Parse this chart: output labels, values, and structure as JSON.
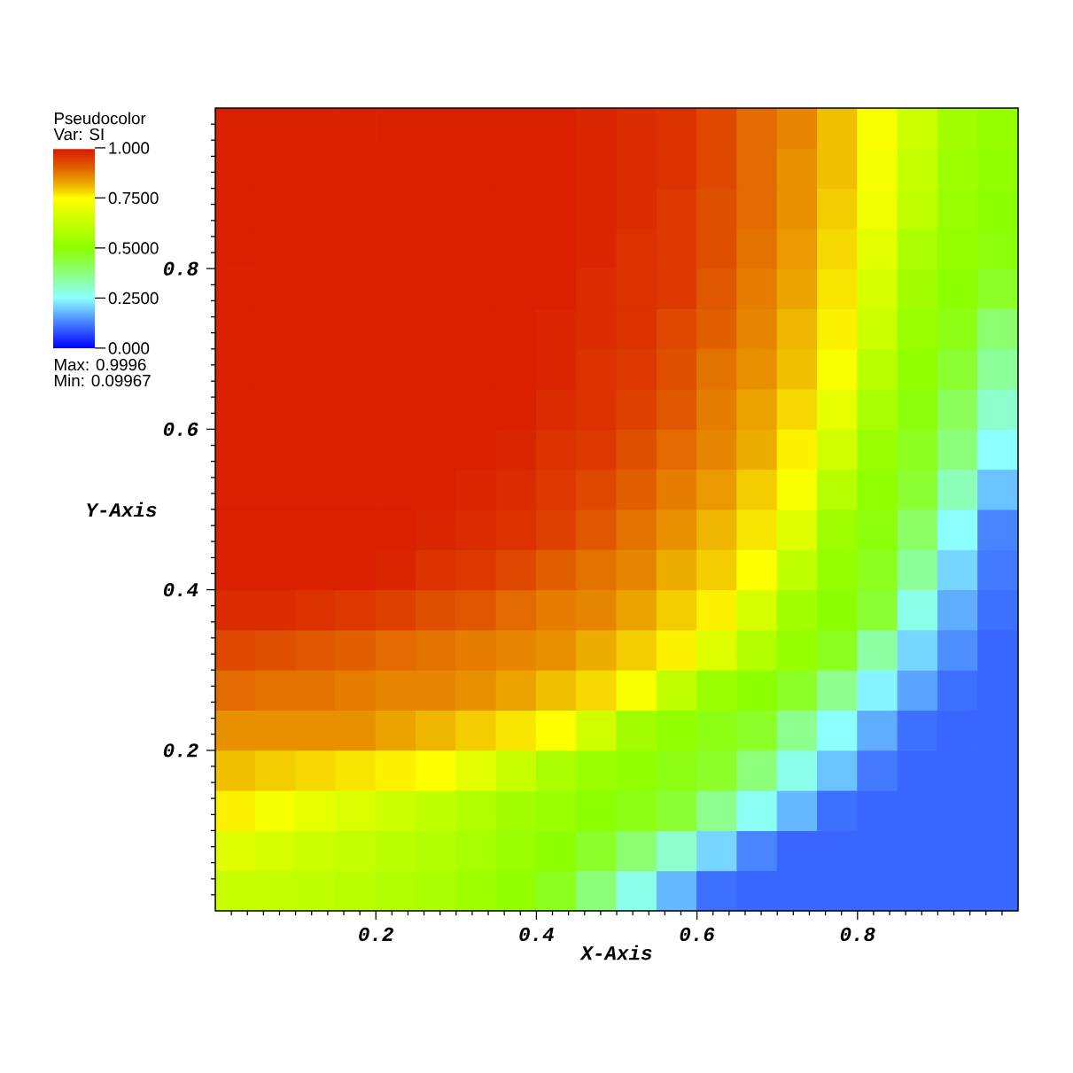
{
  "chart_data": {
    "type": "heatmap",
    "legend_title": "Pseudocolor",
    "clabel": "Var: SI",
    "xlabel": "X-Axis",
    "ylabel": "Y-Axis",
    "annotations": [
      "Max: 0.9996",
      "Min: 0.09967"
    ],
    "x": [
      0.025,
      0.075,
      0.125,
      0.175,
      0.225,
      0.275,
      0.325,
      0.375,
      0.425,
      0.475,
      0.525,
      0.575,
      0.625,
      0.675,
      0.725,
      0.775,
      0.825,
      0.875,
      0.925,
      0.975
    ],
    "y": [
      0.975,
      0.925,
      0.875,
      0.825,
      0.775,
      0.725,
      0.675,
      0.625,
      0.575,
      0.525,
      0.475,
      0.425,
      0.375,
      0.325,
      0.275,
      0.225,
      0.175,
      0.125,
      0.075,
      0.025
    ],
    "xlim": [
      0,
      1
    ],
    "ylim": [
      0,
      1
    ],
    "xticks": [
      {
        "value": 0.02,
        "label": null
      },
      {
        "value": 0.04,
        "label": null
      },
      {
        "value": 0.06,
        "label": null
      },
      {
        "value": 0.08,
        "label": null
      },
      {
        "value": 0.1,
        "label": null
      },
      {
        "value": 0.12,
        "label": null
      },
      {
        "value": 0.14,
        "label": null
      },
      {
        "value": 0.16,
        "label": null
      },
      {
        "value": 0.18,
        "label": null
      },
      0.2,
      {
        "value": 0.22,
        "label": null
      },
      {
        "value": 0.24,
        "label": null
      },
      {
        "value": 0.26,
        "label": null
      },
      {
        "value": 0.28,
        "label": null
      },
      {
        "value": 0.3,
        "label": null
      },
      {
        "value": 0.32,
        "label": null
      },
      {
        "value": 0.34,
        "label": null
      },
      {
        "value": 0.36,
        "label": null
      },
      {
        "value": 0.38,
        "label": null
      },
      0.4,
      {
        "value": 0.42,
        "label": null
      },
      {
        "value": 0.44,
        "label": null
      },
      {
        "value": 0.46,
        "label": null
      },
      {
        "value": 0.48,
        "label": null
      },
      {
        "value": 0.5,
        "label": null
      },
      {
        "value": 0.52,
        "label": null
      },
      {
        "value": 0.54,
        "label": null
      },
      {
        "value": 0.56,
        "label": null
      },
      {
        "value": 0.58,
        "label": null
      },
      0.6,
      {
        "value": 0.62,
        "label": null
      },
      {
        "value": 0.64,
        "label": null
      },
      {
        "value": 0.66,
        "label": null
      },
      {
        "value": 0.68,
        "label": null
      },
      {
        "value": 0.7,
        "label": null
      },
      {
        "value": 0.72,
        "label": null
      },
      {
        "value": 0.74,
        "label": null
      },
      {
        "value": 0.76,
        "label": null
      },
      {
        "value": 0.78,
        "label": null
      },
      0.8,
      {
        "value": 0.82,
        "label": null
      },
      {
        "value": 0.84,
        "label": null
      },
      {
        "value": 0.86,
        "label": null
      },
      {
        "value": 0.88,
        "label": null
      },
      {
        "value": 0.9,
        "label": null
      },
      {
        "value": 0.92,
        "label": null
      },
      {
        "value": 0.94,
        "label": null
      },
      {
        "value": 0.96,
        "label": null
      },
      {
        "value": 0.98,
        "label": null
      }
    ],
    "yticks": [
      {
        "value": 0.02,
        "label": null
      },
      {
        "value": 0.04,
        "label": null
      },
      {
        "value": 0.06,
        "label": null
      },
      {
        "value": 0.08,
        "label": null
      },
      {
        "value": 0.1,
        "label": null
      },
      {
        "value": 0.12,
        "label": null
      },
      {
        "value": 0.14,
        "label": null
      },
      {
        "value": 0.16,
        "label": null
      },
      {
        "value": 0.18,
        "label": null
      },
      0.2,
      {
        "value": 0.22,
        "label": null
      },
      {
        "value": 0.24,
        "label": null
      },
      {
        "value": 0.26,
        "label": null
      },
      {
        "value": 0.28,
        "label": null
      },
      {
        "value": 0.3,
        "label": null
      },
      {
        "value": 0.32,
        "label": null
      },
      {
        "value": 0.34,
        "label": null
      },
      {
        "value": 0.36,
        "label": null
      },
      {
        "value": 0.38,
        "label": null
      },
      0.4,
      {
        "value": 0.42,
        "label": null
      },
      {
        "value": 0.44,
        "label": null
      },
      {
        "value": 0.46,
        "label": null
      },
      {
        "value": 0.48,
        "label": null
      },
      {
        "value": 0.5,
        "label": null
      },
      {
        "value": 0.52,
        "label": null
      },
      {
        "value": 0.54,
        "label": null
      },
      {
        "value": 0.56,
        "label": null
      },
      {
        "value": 0.58,
        "label": null
      },
      0.6,
      {
        "value": 0.62,
        "label": null
      },
      {
        "value": 0.64,
        "label": null
      },
      {
        "value": 0.66,
        "label": null
      },
      {
        "value": 0.68,
        "label": null
      },
      {
        "value": 0.7,
        "label": null
      },
      {
        "value": 0.72,
        "label": null
      },
      {
        "value": 0.74,
        "label": null
      },
      {
        "value": 0.76,
        "label": null
      },
      {
        "value": 0.78,
        "label": null
      },
      0.8,
      {
        "value": 0.82,
        "label": null
      },
      {
        "value": 0.84,
        "label": null
      },
      {
        "value": 0.86,
        "label": null
      },
      {
        "value": 0.88,
        "label": null
      },
      {
        "value": 0.9,
        "label": null
      },
      {
        "value": 0.92,
        "label": null
      },
      {
        "value": 0.94,
        "label": null
      },
      {
        "value": 0.96,
        "label": null
      },
      {
        "value": 0.98,
        "label": null
      }
    ],
    "clim": [
      0,
      1
    ],
    "cticks": [
      {
        "value": 0,
        "label": "0.000"
      },
      {
        "value": 0.25,
        "label": "0.2500"
      },
      {
        "value": 0.5,
        "label": "0.5000"
      },
      {
        "value": 0.75,
        "label": "0.7500"
      },
      {
        "value": 1,
        "label": "1.000"
      }
    ],
    "cells": [
      [
        0.99,
        0.99,
        0.99,
        0.99,
        0.99,
        0.99,
        0.99,
        0.99,
        0.99,
        0.98,
        0.97,
        0.96,
        0.93,
        0.89,
        0.86,
        0.8,
        0.74,
        0.64,
        0.55,
        0.52
      ],
      [
        0.99,
        0.99,
        0.99,
        0.99,
        0.99,
        0.99,
        0.99,
        0.99,
        0.99,
        0.98,
        0.97,
        0.96,
        0.93,
        0.89,
        0.85,
        0.8,
        0.73,
        0.62,
        0.54,
        0.51
      ],
      [
        0.99,
        0.99,
        0.99,
        0.99,
        0.99,
        0.99,
        0.99,
        0.99,
        0.99,
        0.98,
        0.97,
        0.95,
        0.92,
        0.89,
        0.85,
        0.79,
        0.72,
        0.61,
        0.53,
        0.5
      ],
      [
        0.99,
        0.99,
        0.99,
        0.99,
        0.99,
        0.99,
        0.99,
        0.99,
        0.99,
        0.98,
        0.96,
        0.95,
        0.92,
        0.88,
        0.84,
        0.78,
        0.69,
        0.57,
        0.52,
        0.49
      ],
      [
        0.99,
        0.99,
        0.99,
        0.99,
        0.99,
        0.99,
        0.99,
        0.99,
        0.99,
        0.97,
        0.96,
        0.95,
        0.91,
        0.87,
        0.83,
        0.77,
        0.66,
        0.55,
        0.5,
        0.46
      ],
      [
        0.99,
        0.99,
        0.99,
        0.99,
        0.99,
        0.99,
        0.99,
        0.99,
        0.98,
        0.97,
        0.96,
        0.93,
        0.9,
        0.86,
        0.81,
        0.76,
        0.64,
        0.53,
        0.48,
        0.39
      ],
      [
        0.99,
        0.99,
        0.99,
        0.99,
        0.99,
        0.99,
        0.99,
        0.99,
        0.98,
        0.96,
        0.95,
        0.92,
        0.88,
        0.85,
        0.8,
        0.74,
        0.6,
        0.51,
        0.45,
        0.35
      ],
      [
        0.99,
        0.99,
        0.99,
        0.99,
        0.99,
        0.99,
        0.99,
        0.99,
        0.97,
        0.96,
        0.94,
        0.91,
        0.87,
        0.83,
        0.78,
        0.7,
        0.56,
        0.49,
        0.41,
        0.3
      ],
      [
        0.99,
        0.99,
        0.99,
        0.99,
        0.99,
        0.99,
        0.99,
        0.98,
        0.96,
        0.95,
        0.92,
        0.89,
        0.86,
        0.82,
        0.76,
        0.65,
        0.53,
        0.47,
        0.38,
        0.25
      ],
      [
        0.99,
        0.99,
        0.99,
        0.99,
        0.99,
        0.99,
        0.98,
        0.97,
        0.95,
        0.93,
        0.9,
        0.87,
        0.84,
        0.79,
        0.74,
        0.59,
        0.51,
        0.45,
        0.32,
        0.19
      ],
      [
        0.99,
        0.99,
        0.99,
        0.99,
        0.99,
        0.98,
        0.97,
        0.96,
        0.94,
        0.91,
        0.88,
        0.85,
        0.81,
        0.77,
        0.68,
        0.54,
        0.49,
        0.4,
        0.25,
        0.13
      ],
      [
        0.99,
        0.99,
        0.99,
        0.99,
        0.98,
        0.96,
        0.95,
        0.93,
        0.9,
        0.88,
        0.86,
        0.82,
        0.79,
        0.75,
        0.61,
        0.52,
        0.47,
        0.35,
        0.21,
        0.12
      ],
      [
        0.97,
        0.97,
        0.96,
        0.95,
        0.94,
        0.92,
        0.91,
        0.89,
        0.87,
        0.86,
        0.83,
        0.79,
        0.76,
        0.66,
        0.55,
        0.5,
        0.45,
        0.27,
        0.17,
        0.11
      ],
      [
        0.93,
        0.92,
        0.91,
        0.9,
        0.89,
        0.88,
        0.87,
        0.86,
        0.85,
        0.82,
        0.79,
        0.76,
        0.68,
        0.58,
        0.52,
        0.47,
        0.34,
        0.21,
        0.14,
        0.1
      ],
      [
        0.89,
        0.88,
        0.88,
        0.87,
        0.86,
        0.86,
        0.85,
        0.83,
        0.8,
        0.78,
        0.74,
        0.61,
        0.53,
        0.5,
        0.46,
        0.36,
        0.24,
        0.16,
        0.11,
        0.1
      ],
      [
        0.85,
        0.85,
        0.85,
        0.85,
        0.83,
        0.81,
        0.79,
        0.77,
        0.75,
        0.65,
        0.55,
        0.51,
        0.48,
        0.46,
        0.36,
        0.25,
        0.17,
        0.11,
        0.1,
        0.1
      ],
      [
        0.8,
        0.79,
        0.78,
        0.77,
        0.76,
        0.75,
        0.69,
        0.63,
        0.57,
        0.53,
        0.51,
        0.48,
        0.46,
        0.38,
        0.27,
        0.19,
        0.12,
        0.1,
        0.1,
        0.1
      ],
      [
        0.76,
        0.73,
        0.7,
        0.67,
        0.64,
        0.61,
        0.58,
        0.55,
        0.53,
        0.5,
        0.48,
        0.45,
        0.36,
        0.26,
        0.18,
        0.11,
        0.1,
        0.1,
        0.1,
        0.1
      ],
      [
        0.68,
        0.66,
        0.64,
        0.62,
        0.6,
        0.58,
        0.56,
        0.53,
        0.5,
        0.46,
        0.39,
        0.3,
        0.21,
        0.13,
        0.1,
        0.1,
        0.1,
        0.1,
        0.1,
        0.1
      ],
      [
        0.63,
        0.62,
        0.61,
        0.6,
        0.58,
        0.57,
        0.54,
        0.51,
        0.47,
        0.38,
        0.27,
        0.18,
        0.11,
        0.1,
        0.1,
        0.1,
        0.1,
        0.1,
        0.1,
        0.1
      ]
    ]
  }
}
